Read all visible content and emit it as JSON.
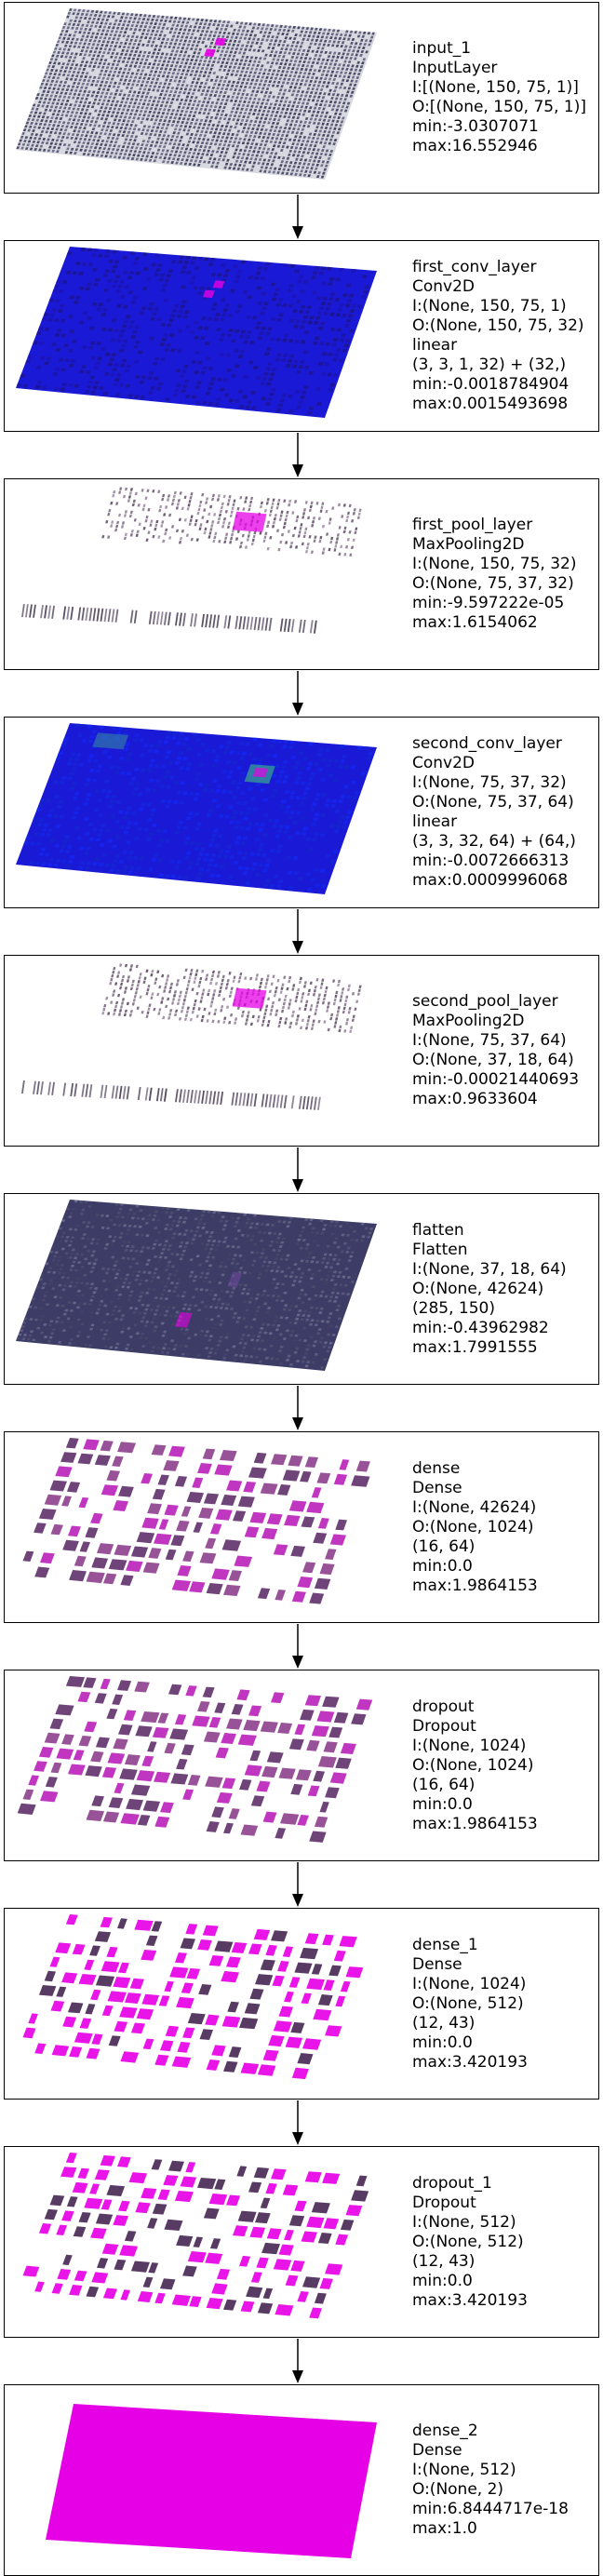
{
  "layers": [
    {
      "name": "input_1",
      "type": "InputLayer",
      "lines": [
        "I:[(None, 150, 75, 1)]",
        "O:[(None, 150, 75, 1)]",
        "min:-3.0307071",
        "max:16.552946"
      ],
      "style": "grid-dark"
    },
    {
      "name": "first_conv_layer",
      "type": "Conv2D",
      "lines": [
        "I:(None, 150, 75, 1)",
        "O:(None, 150, 75, 32)",
        "linear",
        "(3, 3, 1, 32) + (32,)",
        "min:-0.0018784904",
        "max:0.0015493698"
      ],
      "style": "blue"
    },
    {
      "name": "first_pool_layer",
      "type": "MaxPooling2D",
      "lines": [
        "I:(None, 150, 75, 32)",
        "O:(None, 75, 37, 32)",
        "min:-9.597222e-05",
        "max:1.6154062"
      ],
      "style": "sparse-pool"
    },
    {
      "name": "second_conv_layer",
      "type": "Conv2D",
      "lines": [
        "I:(None, 75, 37, 32)",
        "O:(None, 75, 37, 64)",
        "linear",
        "(3, 3, 32, 64) + (64,)",
        "min:-0.0072666313",
        "max:0.0009996068"
      ],
      "style": "blue-bright"
    },
    {
      "name": "second_pool_layer",
      "type": "MaxPooling2D",
      "lines": [
        "I:(None, 75, 37, 64)",
        "O:(None, 37, 18, 64)",
        "min:-0.00021440693",
        "max:0.9633604"
      ],
      "style": "sparse-pool"
    },
    {
      "name": "flatten",
      "type": "Flatten",
      "lines": [
        "I:(None, 37, 18, 64)",
        "O:(None, 42624)",
        "(285, 150)",
        "min:-0.43962982",
        "max:1.7991555"
      ],
      "style": "slate"
    },
    {
      "name": "dense",
      "type": "Dense",
      "lines": [
        "I:(None, 42624)",
        "O:(None, 1024)",
        "(16, 64)",
        "min:0.0",
        "max:1.9864153"
      ],
      "style": "blocks-dark"
    },
    {
      "name": "dropout",
      "type": "Dropout",
      "lines": [
        "I:(None, 1024)",
        "O:(None, 1024)",
        "(16, 64)",
        "min:0.0",
        "max:1.9864153"
      ],
      "style": "blocks-dark"
    },
    {
      "name": "dense_1",
      "type": "Dense",
      "lines": [
        "I:(None, 1024)",
        "O:(None, 512)",
        "(12, 43)",
        "min:0.0",
        "max:3.420193"
      ],
      "style": "blocks-bright"
    },
    {
      "name": "dropout_1",
      "type": "Dropout",
      "lines": [
        "I:(None, 512)",
        "O:(None, 512)",
        "(12, 43)",
        "min:0.0",
        "max:3.420193"
      ],
      "style": "blocks-bright"
    },
    {
      "name": "dense_2",
      "type": "Dense",
      "lines": [
        "I:(None, 512)",
        "O:(None, 2)",
        "min:6.8444717e-18",
        "max:1.0"
      ],
      "style": "solid-magenta"
    }
  ],
  "colors": {
    "magenta": "#e600e6",
    "blue": "#1a1ad6",
    "slate": "#3c3c66",
    "dark-purple": "#4a2a55"
  }
}
